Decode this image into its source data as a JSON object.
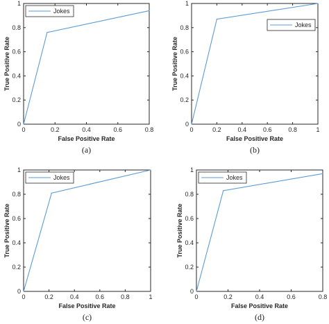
{
  "colors": {
    "series": "#5b9bd5",
    "axis": "#262626"
  },
  "chart_data": [
    {
      "type": "line",
      "panel": "(a)",
      "xlabel": "False Positive Rate",
      "ylabel": "True Positive Rate",
      "xlim": [
        0,
        0.8
      ],
      "ylim": [
        0,
        1
      ],
      "xticks": [
        0,
        0.2,
        0.4,
        0.6,
        0.8
      ],
      "yticks": [
        0,
        0.2,
        0.4,
        0.6,
        0.8,
        1
      ],
      "legend_position": "top-left",
      "series": [
        {
          "name": "Jokes",
          "x": [
            0,
            0.15,
            0.8
          ],
          "y": [
            0,
            0.76,
            0.94
          ]
        }
      ]
    },
    {
      "type": "line",
      "panel": "(b)",
      "xlabel": "False Positive Rate",
      "ylabel": "True Positive Rate",
      "xlim": [
        0,
        1
      ],
      "ylim": [
        0,
        1
      ],
      "xticks": [
        0,
        0.2,
        0.4,
        0.6,
        0.8,
        1
      ],
      "yticks": [
        0,
        0.2,
        0.4,
        0.6,
        0.8,
        1
      ],
      "legend_position": "top-right",
      "series": [
        {
          "name": "Jokes",
          "x": [
            0,
            0.2,
            1
          ],
          "y": [
            0,
            0.87,
            1
          ]
        }
      ]
    },
    {
      "type": "line",
      "panel": "(c)",
      "xlabel": "False Positive Rate",
      "ylabel": "True Positive Rate",
      "xlim": [
        0,
        1
      ],
      "ylim": [
        0,
        1
      ],
      "xticks": [
        0,
        0.2,
        0.4,
        0.6,
        0.8,
        1
      ],
      "yticks": [
        0,
        0.2,
        0.4,
        0.6,
        0.8,
        1
      ],
      "legend_position": "top-left",
      "series": [
        {
          "name": "Jokes",
          "x": [
            0,
            0.22,
            1
          ],
          "y": [
            0,
            0.81,
            1
          ]
        }
      ]
    },
    {
      "type": "line",
      "panel": "(d)",
      "xlabel": "False Positive Rate",
      "ylabel": "True Positive Rate",
      "xlim": [
        0,
        0.8
      ],
      "ylim": [
        0,
        1
      ],
      "xticks": [
        0,
        0.2,
        0.4,
        0.6,
        0.8
      ],
      "yticks": [
        0,
        0.2,
        0.4,
        0.6,
        0.8,
        1
      ],
      "legend_position": "top-left",
      "series": [
        {
          "name": "Jokes",
          "x": [
            0,
            0.17,
            0.8
          ],
          "y": [
            0,
            0.83,
            0.97
          ]
        }
      ]
    }
  ]
}
